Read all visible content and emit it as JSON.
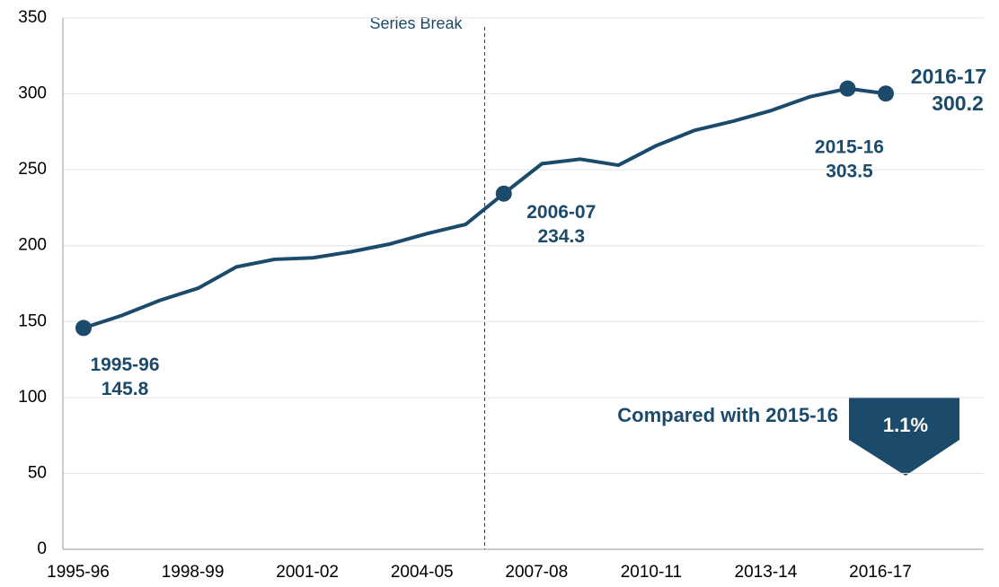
{
  "chart_data": {
    "type": "line",
    "categories": [
      "1995-96",
      null,
      null,
      "1998-99",
      null,
      null,
      "2001-02",
      null,
      null,
      "2004-05",
      null,
      null,
      "2007-08",
      null,
      null,
      "2010-11",
      null,
      null,
      "2013-14",
      null,
      null,
      "2016-17"
    ],
    "series": [
      {
        "name": null,
        "color": "#1b4a6b",
        "values": [
          145.8,
          154,
          164,
          172,
          186,
          191,
          192,
          196,
          201,
          208,
          214,
          234.3,
          254,
          257,
          253,
          266,
          276,
          282,
          289,
          298,
          303.5,
          300.2
        ]
      }
    ],
    "point_labels": [
      "1995-96",
      null,
      null,
      null,
      null,
      null,
      null,
      null,
      null,
      null,
      null,
      "2006-07",
      null,
      null,
      null,
      null,
      null,
      null,
      null,
      null,
      "2015-16",
      "2016-17"
    ],
    "ylim": [
      0,
      350
    ],
    "yticks": [
      0,
      50,
      100,
      150,
      200,
      250,
      300,
      350
    ],
    "grid": true,
    "annotation": "Series Break",
    "callout": {
      "text": "Compared with 2015-16",
      "change": "1.1%"
    }
  }
}
